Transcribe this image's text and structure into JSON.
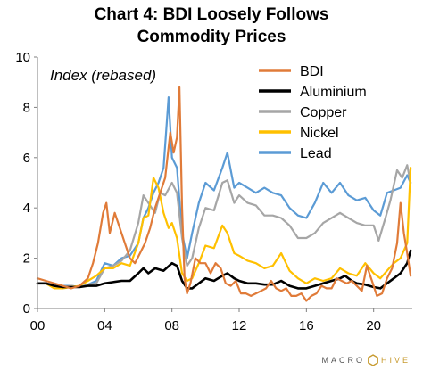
{
  "chart_data": {
    "type": "line",
    "title": "Chart 4: BDI Loosely Follows Commodity Prices",
    "title_lines": [
      "Chart 4: BDI Loosely Follows",
      "Commodity Prices"
    ],
    "annotation": "Index (rebased)",
    "xlabel": "",
    "ylabel": "",
    "xlim": [
      2000,
      2022.3
    ],
    "ylim": [
      0,
      10
    ],
    "x_ticks": [
      2000,
      2004,
      2008,
      2012,
      2016,
      2020
    ],
    "x_tick_labels": [
      "00",
      "04",
      "08",
      "12",
      "16",
      "20"
    ],
    "y_ticks": [
      0,
      2,
      4,
      6,
      8,
      10
    ],
    "y_tick_labels": [
      "0",
      "2",
      "4",
      "6",
      "8",
      "10"
    ],
    "grid": false,
    "legend_position": "top-right",
    "series": [
      {
        "name": "BDI",
        "color": "#e07b39",
        "x": [
          2000,
          2000.5,
          2001,
          2001.5,
          2002,
          2002.5,
          2003,
          2003.3,
          2003.6,
          2003.9,
          2004.1,
          2004.3,
          2004.6,
          2004.9,
          2005.2,
          2005.5,
          2005.8,
          2006.1,
          2006.4,
          2006.7,
          2007,
          2007.3,
          2007.6,
          2007.9,
          2008.1,
          2008.3,
          2008.45,
          2008.6,
          2008.75,
          2008.9,
          2009.1,
          2009.4,
          2009.7,
          2010,
          2010.3,
          2010.6,
          2010.9,
          2011.2,
          2011.5,
          2011.8,
          2012.1,
          2012.4,
          2012.7,
          2013,
          2013.3,
          2013.6,
          2013.9,
          2014.2,
          2014.5,
          2014.8,
          2015.1,
          2015.4,
          2015.7,
          2016,
          2016.3,
          2016.6,
          2016.9,
          2017.2,
          2017.5,
          2017.8,
          2018.1,
          2018.4,
          2018.7,
          2019,
          2019.3,
          2019.6,
          2019.9,
          2020.2,
          2020.5,
          2020.8,
          2021.1,
          2021.4,
          2021.6,
          2021.8,
          2022,
          2022.2
        ],
        "y": [
          1.2,
          1.1,
          1.0,
          0.9,
          0.8,
          0.9,
          1.2,
          1.8,
          2.6,
          3.8,
          4.2,
          3.0,
          3.8,
          3.2,
          2.6,
          2.0,
          1.8,
          2.2,
          2.6,
          3.2,
          4.0,
          4.6,
          5.2,
          7.0,
          6.2,
          6.8,
          8.8,
          4.0,
          1.2,
          0.6,
          1.0,
          2.0,
          1.8,
          1.8,
          1.4,
          1.8,
          1.6,
          1.0,
          0.9,
          1.1,
          0.6,
          0.6,
          0.5,
          0.6,
          0.7,
          0.8,
          1.1,
          0.8,
          0.7,
          0.8,
          0.5,
          0.5,
          0.6,
          0.3,
          0.5,
          0.6,
          0.9,
          0.8,
          0.8,
          1.2,
          1.1,
          1.0,
          1.1,
          0.9,
          0.7,
          1.7,
          1.1,
          0.5,
          0.6,
          1.2,
          1.6,
          2.6,
          4.2,
          3.0,
          2.2,
          1.3
        ]
      },
      {
        "name": "Aluminium",
        "color": "#000000",
        "x": [
          2000,
          2000.5,
          2001,
          2001.5,
          2002,
          2002.5,
          2003,
          2003.5,
          2004,
          2004.5,
          2005,
          2005.5,
          2006,
          2006.3,
          2006.6,
          2007,
          2007.5,
          2008,
          2008.3,
          2008.6,
          2008.9,
          2009.2,
          2009.6,
          2010,
          2010.5,
          2011,
          2011.3,
          2011.7,
          2012,
          2012.5,
          2013,
          2013.5,
          2014,
          2014.5,
          2015,
          2015.5,
          2016,
          2016.5,
          2017,
          2017.5,
          2018,
          2018.3,
          2018.7,
          2019,
          2019.5,
          2020,
          2020.4,
          2020.8,
          2021.2,
          2021.6,
          2022,
          2022.2
        ],
        "y": [
          1.0,
          1.0,
          0.9,
          0.85,
          0.85,
          0.85,
          0.9,
          0.9,
          1.0,
          1.05,
          1.1,
          1.1,
          1.4,
          1.6,
          1.4,
          1.6,
          1.5,
          1.8,
          1.7,
          1.1,
          0.8,
          0.8,
          1.0,
          1.2,
          1.1,
          1.3,
          1.4,
          1.2,
          1.1,
          1.0,
          1.0,
          0.95,
          0.95,
          1.1,
          0.9,
          0.8,
          0.8,
          0.9,
          1.0,
          1.1,
          1.2,
          1.3,
          1.1,
          1.0,
          0.95,
          0.85,
          0.8,
          1.0,
          1.2,
          1.4,
          1.8,
          2.3
        ]
      },
      {
        "name": "Copper",
        "color": "#a6a6a6",
        "x": [
          2000,
          2000.5,
          2001,
          2001.5,
          2002,
          2002.5,
          2003,
          2003.5,
          2004,
          2004.5,
          2005,
          2005.5,
          2006,
          2006.3,
          2006.6,
          2007,
          2007.3,
          2007.6,
          2008,
          2008.3,
          2008.6,
          2008.9,
          2009.2,
          2009.6,
          2010,
          2010.5,
          2011,
          2011.3,
          2011.7,
          2012,
          2012.5,
          2013,
          2013.5,
          2014,
          2014.5,
          2015,
          2015.5,
          2016,
          2016.5,
          2017,
          2017.5,
          2018,
          2018.5,
          2019,
          2019.5,
          2020,
          2020.3,
          2020.7,
          2021,
          2021.4,
          2021.7,
          2022,
          2022.2
        ],
        "y": [
          1.0,
          1.0,
          0.9,
          0.85,
          0.9,
          0.85,
          0.95,
          1.0,
          1.6,
          1.7,
          1.9,
          2.3,
          3.4,
          4.5,
          4.2,
          3.8,
          4.6,
          4.5,
          5.0,
          4.6,
          2.8,
          1.7,
          2.0,
          3.2,
          4.0,
          3.9,
          5.0,
          5.1,
          4.2,
          4.5,
          4.2,
          4.1,
          3.7,
          3.7,
          3.6,
          3.3,
          2.8,
          2.8,
          3.0,
          3.4,
          3.6,
          3.8,
          3.6,
          3.4,
          3.3,
          3.3,
          2.7,
          3.6,
          4.3,
          5.5,
          5.2,
          5.7,
          5.0
        ]
      },
      {
        "name": "Nickel",
        "color": "#ffc000",
        "x": [
          2000,
          2000.5,
          2001,
          2001.5,
          2002,
          2002.5,
          2003,
          2003.5,
          2004,
          2004.5,
          2005,
          2005.5,
          2006,
          2006.3,
          2006.6,
          2006.9,
          2007.2,
          2007.5,
          2007.8,
          2008,
          2008.3,
          2008.6,
          2008.9,
          2009.2,
          2009.6,
          2010,
          2010.5,
          2011,
          2011.3,
          2011.7,
          2012,
          2012.5,
          2013,
          2013.5,
          2014,
          2014.5,
          2015,
          2015.5,
          2016,
          2016.5,
          2017,
          2017.5,
          2018,
          2018.5,
          2019,
          2019.5,
          2020,
          2020.4,
          2020.8,
          2021.2,
          2021.6,
          2022,
          2022.2
        ],
        "y": [
          1.0,
          1.0,
          0.8,
          0.8,
          0.85,
          0.9,
          1.1,
          1.3,
          1.6,
          1.6,
          1.8,
          1.7,
          2.6,
          3.6,
          3.7,
          5.2,
          4.8,
          3.8,
          3.2,
          3.4,
          2.8,
          1.4,
          1.1,
          1.2,
          1.8,
          2.5,
          2.4,
          3.3,
          3.0,
          2.2,
          2.1,
          1.9,
          1.8,
          1.6,
          1.7,
          2.2,
          1.5,
          1.2,
          1.0,
          1.2,
          1.1,
          1.2,
          1.6,
          1.4,
          1.3,
          1.8,
          1.4,
          1.2,
          1.5,
          1.8,
          2.0,
          2.6,
          5.6
        ]
      },
      {
        "name": "Lead",
        "color": "#5b9bd5",
        "x": [
          2000,
          2000.5,
          2001,
          2001.5,
          2002,
          2002.5,
          2003,
          2003.5,
          2004,
          2004.5,
          2005,
          2005.5,
          2006,
          2006.3,
          2006.6,
          2006.9,
          2007.2,
          2007.5,
          2007.8,
          2008,
          2008.3,
          2008.6,
          2008.9,
          2009.2,
          2009.6,
          2010,
          2010.5,
          2011,
          2011.3,
          2011.7,
          2012,
          2012.5,
          2013,
          2013.5,
          2014,
          2014.5,
          2015,
          2015.5,
          2016,
          2016.5,
          2017,
          2017.5,
          2018,
          2018.5,
          2019,
          2019.5,
          2020,
          2020.4,
          2020.8,
          2021.2,
          2021.6,
          2022,
          2022.2
        ],
        "y": [
          1.0,
          1.0,
          0.95,
          0.9,
          0.9,
          0.85,
          0.95,
          1.1,
          1.8,
          1.7,
          2.0,
          2.1,
          2.6,
          3.6,
          4.0,
          4.6,
          5.0,
          5.6,
          8.4,
          6.0,
          5.6,
          3.0,
          2.0,
          3.0,
          4.2,
          5.0,
          4.7,
          5.6,
          6.2,
          4.8,
          5.0,
          4.8,
          4.6,
          4.8,
          4.6,
          4.5,
          4.0,
          3.7,
          3.6,
          4.2,
          5.0,
          4.6,
          5.0,
          4.5,
          4.3,
          4.4,
          3.9,
          3.7,
          4.6,
          4.7,
          4.8,
          5.3,
          5.0
        ]
      }
    ]
  },
  "brand": {
    "left": "MACRO",
    "right": "HIVE"
  }
}
